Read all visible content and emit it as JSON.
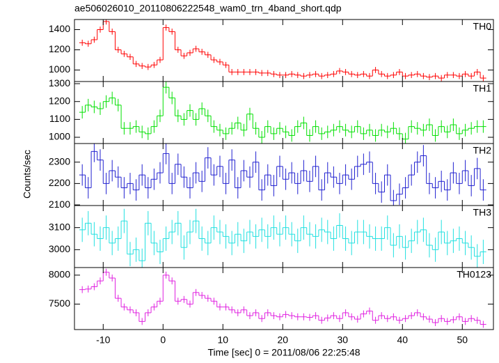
{
  "chart_data": {
    "type": "stacked-step",
    "title": "ae506026010_20110806222548_wam0_trn_4band_short.qdp",
    "xlabel": "Time [sec] 0 = 2011/08/06 22:25:48",
    "ylabel": "Counts/sec",
    "xlim": [
      -14.8,
      55.2
    ],
    "xticks": [
      -10,
      0,
      10,
      20,
      30,
      40,
      50
    ],
    "x": [
      -13.5,
      -12.5,
      -11.5,
      -10.5,
      -9.5,
      -8.5,
      -7.5,
      -6.5,
      -5.5,
      -4.5,
      -3.5,
      -2.5,
      -1.5,
      -0.5,
      0.5,
      1.5,
      2.5,
      3.5,
      4.5,
      5.5,
      6.5,
      7.5,
      8.5,
      9.5,
      10.5,
      11.5,
      12.5,
      13.5,
      14.5,
      15.5,
      16.5,
      17.5,
      18.5,
      19.5,
      20.5,
      21.5,
      22.5,
      23.5,
      24.5,
      25.5,
      26.5,
      27.5,
      28.5,
      29.5,
      30.5,
      31.5,
      32.5,
      33.5,
      34.5,
      35.5,
      36.5,
      37.5,
      38.5,
      39.5,
      40.5,
      41.5,
      42.5,
      43.5,
      44.5,
      45.5,
      46.5,
      47.5,
      48.5,
      49.5,
      50.5,
      51.5,
      52.5,
      53.5
    ],
    "panels": [
      {
        "name": "TH0",
        "color": "#ff0000",
        "error": 30,
        "ylim": [
          886,
          1500
        ],
        "yticks": [
          1000,
          1200,
          1400
        ],
        "values": [
          1270,
          1260,
          1300,
          1400,
          1480,
          1380,
          1200,
          1160,
          1130,
          1060,
          1040,
          1030,
          1050,
          1100,
          1420,
          1380,
          1200,
          1140,
          1170,
          1210,
          1180,
          1150,
          1100,
          1080,
          1050,
          980,
          980,
          980,
          980,
          980,
          970,
          970,
          960,
          950,
          950,
          960,
          950,
          940,
          950,
          960,
          940,
          950,
          960,
          990,
          980,
          960,
          950,
          960,
          940,
          1000,
          960,
          940,
          950,
          980,
          940,
          950,
          960,
          940,
          930,
          940,
          920,
          950,
          950,
          940,
          960,
          940,
          980,
          920
        ]
      },
      {
        "name": "TH1",
        "color": "#00e000",
        "error": 35,
        "ylim": [
          965,
          1312
        ],
        "yticks": [
          1000,
          1100,
          1200,
          1300
        ],
        "values": [
          1140,
          1180,
          1170,
          1160,
          1200,
          1220,
          1180,
          1050,
          1050,
          1060,
          1030,
          1020,
          1060,
          1120,
          1280,
          1220,
          1120,
          1100,
          1150,
          1100,
          1160,
          1120,
          1060,
          1040,
          1020,
          1050,
          1080,
          1040,
          1130,
          1050,
          1000,
          1060,
          1020,
          1050,
          1030,
          1010,
          1060,
          1080,
          1010,
          1060,
          1020,
          1030,
          1040,
          1060,
          1040,
          1030,
          1060,
          1020,
          1040,
          1010,
          1040,
          1030,
          1050,
          1020,
          990,
          1060,
          1050,
          1040,
          1070,
          1010,
          1060,
          1030,
          1070,
          1020,
          1040,
          1050,
          1060,
          1060
        ]
      },
      {
        "name": "TH2",
        "color": "#2020d0",
        "error": 50,
        "ylim": [
          2097,
          2387
        ],
        "yticks": [
          2100,
          2200,
          2300
        ],
        "values": [
          2240,
          2180,
          2350,
          2310,
          2200,
          2260,
          2230,
          2180,
          2200,
          2170,
          2240,
          2180,
          2220,
          2250,
          2340,
          2200,
          2290,
          2230,
          2180,
          2250,
          2210,
          2320,
          2240,
          2280,
          2200,
          2310,
          2180,
          2260,
          2230,
          2300,
          2170,
          2240,
          2190,
          2280,
          2220,
          2250,
          2200,
          2260,
          2210,
          2280,
          2170,
          2250,
          2230,
          2200,
          2240,
          2220,
          2280,
          2290,
          2300,
          2200,
          2160,
          2240,
          2120,
          2150,
          2180,
          2240,
          2300,
          2330,
          2200,
          2180,
          2210,
          2170,
          2250,
          2200,
          2260,
          2190,
          2270,
          2170
        ]
      },
      {
        "name": "TH3",
        "color": "#20e0e0",
        "error": 55,
        "ylim": [
          2919,
          3200
        ],
        "yticks": [
          3000,
          3100
        ],
        "values": [
          3090,
          3120,
          3070,
          3050,
          3100,
          3030,
          3050,
          3130,
          2980,
          3000,
          2950,
          3120,
          3030,
          2990,
          3050,
          3080,
          3120,
          3010,
          3080,
          3130,
          3050,
          3030,
          3100,
          3080,
          3060,
          3030,
          3070,
          3040,
          3080,
          3060,
          3090,
          3060,
          3100,
          3070,
          3100,
          3070,
          3040,
          3100,
          3070,
          3060,
          3090,
          3080,
          3050,
          3110,
          3050,
          3030,
          3080,
          3080,
          3060,
          3050,
          3050,
          3100,
          3020,
          3060,
          3010,
          3040,
          3080,
          3090,
          3020,
          3000,
          3080,
          3030,
          3040,
          3050,
          3030,
          3010,
          2970,
          2990
        ]
      },
      {
        "name": "TH0123",
        "color": "#e020e0",
        "error": 60,
        "ylim": [
          7060,
          8131
        ],
        "yticks": [
          7500,
          8000
        ],
        "values": [
          7750,
          7760,
          7800,
          7900,
          8050,
          7950,
          7600,
          7450,
          7400,
          7350,
          7200,
          7350,
          7450,
          7550,
          8000,
          7900,
          7550,
          7580,
          7500,
          7700,
          7650,
          7600,
          7550,
          7450,
          7450,
          7400,
          7350,
          7400,
          7300,
          7350,
          7250,
          7350,
          7300,
          7280,
          7320,
          7300,
          7280,
          7280,
          7270,
          7300,
          7220,
          7260,
          7300,
          7250,
          7350,
          7280,
          7240,
          7330,
          7380,
          7220,
          7300,
          7250,
          7280,
          7220,
          7250,
          7300,
          7350,
          7280,
          7240,
          7180,
          7250,
          7200,
          7230,
          7280,
          7200,
          7250,
          7220,
          7150
        ]
      }
    ]
  }
}
